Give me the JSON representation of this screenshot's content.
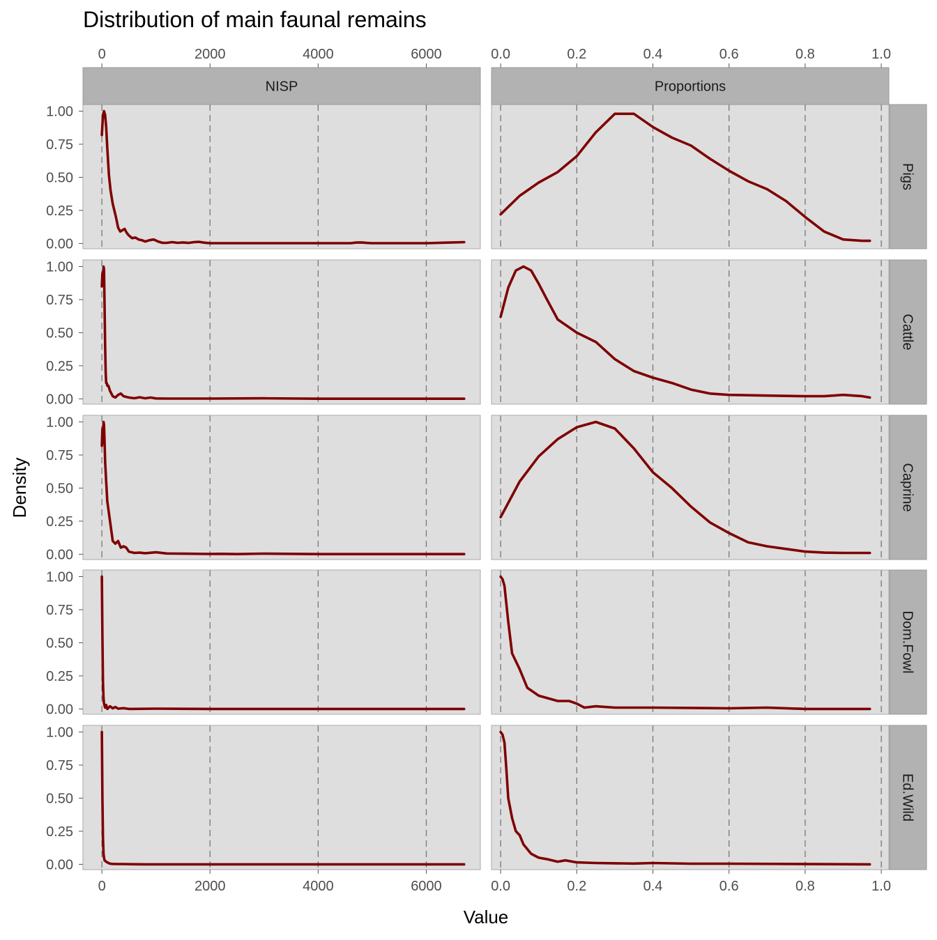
{
  "chart_data": {
    "type": "line",
    "title": "Distribution of main faunal remains",
    "xlabel": "Value",
    "ylabel": "Density",
    "grid": "dashed vertical lines at major x ticks",
    "background_color": "#dedede",
    "strip_color": "#b2b2b2",
    "line_color": "#7f0000",
    "columns": [
      {
        "name": "NISP",
        "xlim": [
          -350,
          7000
        ],
        "xticks": [
          0,
          2000,
          4000,
          6000
        ],
        "xtick_labels": [
          "0",
          "2000",
          "4000",
          "6000"
        ]
      },
      {
        "name": "Proportions",
        "xlim": [
          -0.024,
          1.02
        ],
        "xticks": [
          0,
          0.2,
          0.4,
          0.6,
          0.8,
          1.0
        ],
        "xtick_labels": [
          "0.0",
          "0.2",
          "0.4",
          "0.6",
          "0.8",
          "1.0"
        ]
      }
    ],
    "rows": [
      "Pigs",
      "Cattle",
      "Caprine",
      "Dom.Fowl",
      "Ed.Wild"
    ],
    "ylim": [
      -0.04,
      1.05
    ],
    "yticks": [
      0,
      0.25,
      0.5,
      0.75,
      1.0
    ],
    "ytick_labels": [
      "0.00",
      "0.25",
      "0.50",
      "0.75",
      "1.00"
    ],
    "series": [
      {
        "row": "Pigs",
        "column": "NISP",
        "x": [
          0,
          20,
          40,
          60,
          80,
          100,
          130,
          160,
          200,
          260,
          300,
          340,
          380,
          420,
          460,
          500,
          560,
          620,
          680,
          740,
          800,
          880,
          960,
          1040,
          1120,
          1200,
          1300,
          1400,
          1500,
          1600,
          1700,
          1800,
          1900,
          2000,
          2500,
          3000,
          4000,
          4600,
          4700,
          4800,
          4900,
          5000,
          6000,
          6700
        ],
        "y": [
          0.82,
          0.97,
          1.0,
          0.97,
          0.88,
          0.72,
          0.52,
          0.4,
          0.3,
          0.2,
          0.12,
          0.09,
          0.1,
          0.11,
          0.08,
          0.06,
          0.04,
          0.045,
          0.03,
          0.025,
          0.015,
          0.025,
          0.03,
          0.015,
          0.005,
          0.005,
          0.01,
          0.005,
          0.008,
          0.004,
          0.01,
          0.012,
          0.006,
          0.002,
          0.002,
          0.002,
          0.002,
          0.002,
          0.007,
          0.008,
          0.004,
          0.002,
          0.002,
          0.01
        ]
      },
      {
        "row": "Pigs",
        "column": "Proportions",
        "x": [
          0,
          0.05,
          0.1,
          0.15,
          0.2,
          0.25,
          0.3,
          0.35,
          0.4,
          0.45,
          0.5,
          0.55,
          0.6,
          0.65,
          0.7,
          0.75,
          0.8,
          0.85,
          0.9,
          0.95,
          0.97
        ],
        "y": [
          0.22,
          0.36,
          0.46,
          0.54,
          0.66,
          0.84,
          0.98,
          0.98,
          0.88,
          0.8,
          0.74,
          0.64,
          0.55,
          0.47,
          0.41,
          0.32,
          0.2,
          0.09,
          0.03,
          0.02,
          0.02
        ]
      },
      {
        "row": "Cattle",
        "column": "NISP",
        "x": [
          0,
          10,
          20,
          30,
          40,
          50,
          60,
          70,
          80,
          90,
          100,
          120,
          150,
          200,
          250,
          300,
          350,
          400,
          500,
          600,
          700,
          800,
          900,
          1000,
          1200,
          1500,
          2000,
          3000,
          4000,
          6000,
          6700
        ],
        "y": [
          0.85,
          0.95,
          0.9,
          1.0,
          0.98,
          0.7,
          0.4,
          0.2,
          0.12,
          0.12,
          0.1,
          0.1,
          0.06,
          0.02,
          0.01,
          0.03,
          0.04,
          0.02,
          0.01,
          0.005,
          0.012,
          0.004,
          0.01,
          0.003,
          0.002,
          0.002,
          0.002,
          0.004,
          0.001,
          0.001,
          0.001
        ]
      },
      {
        "row": "Cattle",
        "column": "Proportions",
        "x": [
          0,
          0.02,
          0.04,
          0.06,
          0.08,
          0.1,
          0.12,
          0.15,
          0.2,
          0.25,
          0.3,
          0.35,
          0.4,
          0.45,
          0.5,
          0.55,
          0.6,
          0.7,
          0.8,
          0.85,
          0.9,
          0.95,
          0.97
        ],
        "y": [
          0.62,
          0.84,
          0.97,
          1.0,
          0.97,
          0.87,
          0.76,
          0.6,
          0.5,
          0.43,
          0.3,
          0.21,
          0.16,
          0.12,
          0.07,
          0.04,
          0.03,
          0.025,
          0.02,
          0.02,
          0.03,
          0.02,
          0.01
        ]
      },
      {
        "row": "Caprine",
        "column": "NISP",
        "x": [
          0,
          10,
          20,
          30,
          40,
          50,
          60,
          80,
          100,
          150,
          200,
          250,
          300,
          350,
          400,
          450,
          500,
          600,
          700,
          800,
          1000,
          1200,
          1500,
          2000,
          2200,
          2500,
          3000,
          4000,
          6000,
          6700
        ],
        "y": [
          0.82,
          0.95,
          0.84,
          1.0,
          0.98,
          0.85,
          0.7,
          0.55,
          0.4,
          0.25,
          0.1,
          0.08,
          0.1,
          0.05,
          0.06,
          0.05,
          0.02,
          0.01,
          0.012,
          0.008,
          0.015,
          0.006,
          0.004,
          0.002,
          0.003,
          0.001,
          0.005,
          0.001,
          0.001,
          0.001
        ]
      },
      {
        "row": "Caprine",
        "column": "Proportions",
        "x": [
          0,
          0.05,
          0.1,
          0.15,
          0.2,
          0.25,
          0.3,
          0.35,
          0.4,
          0.45,
          0.5,
          0.55,
          0.6,
          0.65,
          0.7,
          0.75,
          0.8,
          0.85,
          0.9,
          0.95,
          0.97
        ],
        "y": [
          0.28,
          0.55,
          0.74,
          0.87,
          0.96,
          1.0,
          0.95,
          0.8,
          0.62,
          0.5,
          0.36,
          0.24,
          0.16,
          0.09,
          0.06,
          0.04,
          0.02,
          0.012,
          0.01,
          0.01,
          0.01
        ]
      },
      {
        "row": "Dom.Fowl",
        "column": "NISP",
        "x": [
          0,
          10,
          20,
          30,
          40,
          60,
          80,
          100,
          150,
          200,
          250,
          300,
          400,
          500,
          1000,
          2000,
          4000,
          6700
        ],
        "y": [
          1.0,
          0.55,
          0.2,
          0.08,
          0.04,
          0.01,
          0.03,
          0.0,
          0.02,
          0.005,
          0.015,
          0.002,
          0.006,
          0.0,
          0.002,
          0.0,
          0.0,
          0.0
        ]
      },
      {
        "row": "Dom.Fowl",
        "column": "Proportions",
        "x": [
          0,
          0.005,
          0.01,
          0.02,
          0.03,
          0.05,
          0.07,
          0.1,
          0.15,
          0.18,
          0.2,
          0.22,
          0.25,
          0.3,
          0.4,
          0.6,
          0.7,
          0.8,
          0.97
        ],
        "y": [
          1.0,
          0.98,
          0.93,
          0.66,
          0.42,
          0.3,
          0.16,
          0.1,
          0.06,
          0.06,
          0.04,
          0.01,
          0.02,
          0.01,
          0.01,
          0.005,
          0.01,
          0.0,
          0.0
        ]
      },
      {
        "row": "Ed.Wild",
        "column": "NISP",
        "x": [
          0,
          10,
          20,
          30,
          40,
          50,
          80,
          100,
          150,
          200,
          300,
          400,
          500,
          800,
          1000,
          2000,
          4000,
          6700
        ],
        "y": [
          1.0,
          0.5,
          0.2,
          0.08,
          0.05,
          0.03,
          0.02,
          0.015,
          0.005,
          0.003,
          0.002,
          0.002,
          0.001,
          0.0,
          0.0,
          0.0,
          0.0,
          0.0
        ]
      },
      {
        "row": "Ed.Wild",
        "column": "Proportions",
        "x": [
          0,
          0.005,
          0.01,
          0.015,
          0.02,
          0.03,
          0.04,
          0.05,
          0.06,
          0.08,
          0.1,
          0.12,
          0.15,
          0.17,
          0.2,
          0.25,
          0.3,
          0.35,
          0.4,
          0.5,
          0.6,
          0.97
        ],
        "y": [
          1.0,
          0.98,
          0.92,
          0.72,
          0.5,
          0.35,
          0.25,
          0.22,
          0.15,
          0.08,
          0.05,
          0.04,
          0.02,
          0.03,
          0.015,
          0.01,
          0.008,
          0.006,
          0.01,
          0.005,
          0.005,
          0.0
        ]
      }
    ]
  }
}
